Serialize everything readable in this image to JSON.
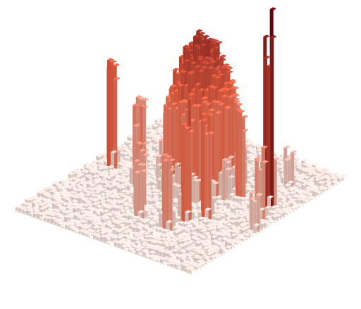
{
  "chart_data": {
    "type": "surface-3d",
    "colormap": "Reds",
    "colors": {
      "low": "#fff5f0",
      "mid": "#fb6a4a",
      "high": "#67000d"
    },
    "axes_visible": false,
    "grid": false,
    "title": "",
    "xlabel": "",
    "ylabel": "",
    "zlabel": "",
    "xlim": [
      0,
      50
    ],
    "ylim": [
      0,
      50
    ],
    "zlim": [
      0,
      1
    ],
    "baseline_noise": 0.03,
    "plateau": {
      "cx": 25,
      "cy": 31,
      "radius": 8,
      "height": 0.72
    },
    "spikes": [
      {
        "x": 4,
        "y": 26,
        "height": 0.55
      },
      {
        "x": 6,
        "y": 33,
        "height": 0.3
      },
      {
        "x": 14,
        "y": 23,
        "height": 0.42
      },
      {
        "x": 16,
        "y": 40,
        "height": 0.22
      },
      {
        "x": 21,
        "y": 16,
        "height": 0.35
      },
      {
        "x": 24,
        "y": 12,
        "height": 0.28
      },
      {
        "x": 32,
        "y": 12,
        "height": 0.38
      },
      {
        "x": 33,
        "y": 17,
        "height": 0.62
      },
      {
        "x": 36,
        "y": 20,
        "height": 0.52
      },
      {
        "x": 36,
        "y": 31,
        "height": 0.45
      },
      {
        "x": 44,
        "y": 31,
        "height": 0.98
      },
      {
        "x": 46,
        "y": 26,
        "height": 0.35
      },
      {
        "x": 48,
        "y": 22,
        "height": 0.2
      },
      {
        "x": 41,
        "y": 41,
        "height": 0.18
      }
    ]
  }
}
